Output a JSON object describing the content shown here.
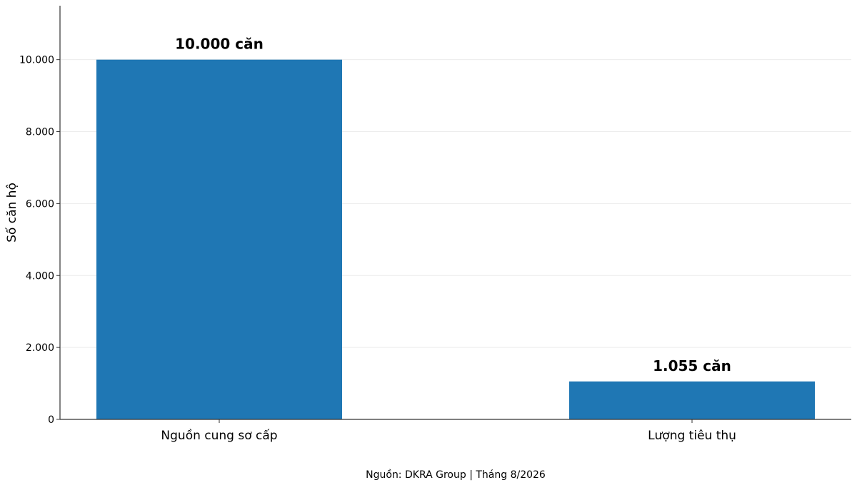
{
  "chart_data": {
    "type": "bar",
    "categories": [
      "Nguồn cung sơ cấp",
      "Lượng tiêu thụ"
    ],
    "values": [
      10000,
      1055
    ],
    "data_labels": [
      "10.000 căn",
      "1.055 căn"
    ],
    "ylabel": "Số căn hộ",
    "xlabel": "",
    "ylim": [
      0,
      11500
    ],
    "yticks": [
      0,
      2000,
      4000,
      6000,
      8000,
      10000
    ],
    "ytick_labels": [
      "0",
      "2.000",
      "4.000",
      "6.000",
      "8.000",
      "10.000"
    ],
    "grid": "horizontal",
    "bar_color": "#1f77b4"
  },
  "footer": {
    "source": "Nguồn: DKRA Group | Tháng 8/2026"
  }
}
